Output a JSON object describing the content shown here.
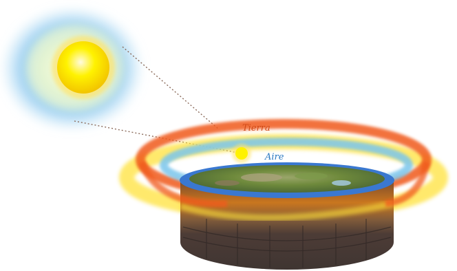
{
  "labels": {
    "fire": "Tierra",
    "air": "Aire"
  },
  "colors": {
    "sun_core": "#fff200",
    "sun_glow": "#ffd21a",
    "sun_halo": "#8ec9f0",
    "fire_ring": "#f05a1e",
    "air_ring": "#7cc6ec",
    "yellow_glow": "#ffe23a",
    "water_rim": "#3a78d0",
    "land": "#6f8a3c",
    "stone": "#5c4a44"
  }
}
